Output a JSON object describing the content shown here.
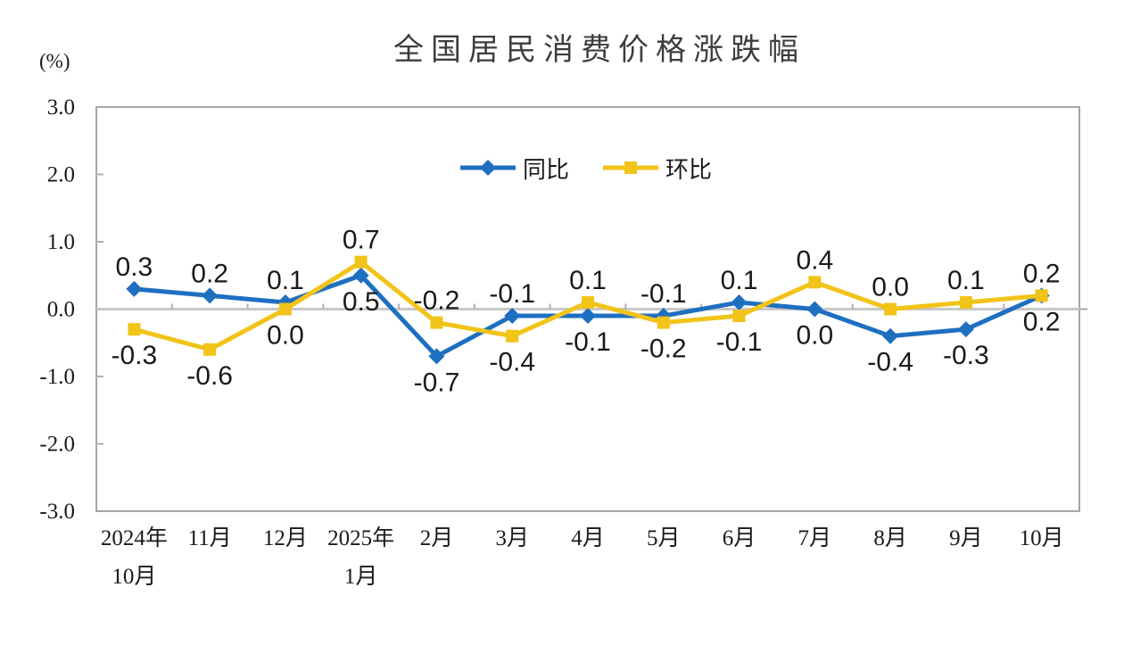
{
  "chart": {
    "title": "全国居民消费价格涨跌幅",
    "unit_label": "(%)"
  },
  "colors": {
    "tongbi_blue": "#1E6FC0",
    "huanbi_yellow": "#F2C318",
    "frame_gray": "#A6A6A6",
    "zero_line_gray": "#C8C8C8",
    "tick_gray": "#B0B0B0",
    "label_text": "#1A1A1A",
    "title_text": "#3D3D3D",
    "background": "#FFFFFF"
  },
  "chart_data": {
    "type": "line",
    "title": "全国居民消费价格涨跌幅",
    "ylabel": "(%)",
    "ylim": [
      -3.0,
      3.0
    ],
    "yticks": [
      3.0,
      2.0,
      1.0,
      0.0,
      -1.0,
      -2.0,
      -3.0
    ],
    "grid": false,
    "legend_position": "top-center-inside",
    "categories": [
      "2024年\n10月",
      "11月",
      "12月",
      "2025年\n1月",
      "2月",
      "3月",
      "4月",
      "5月",
      "6月",
      "7月",
      "8月",
      "9月",
      "10月"
    ],
    "series": [
      {
        "name": "同比",
        "marker": "diamond",
        "color": "#1E6FC0",
        "values": [
          0.3,
          0.2,
          0.1,
          0.5,
          -0.7,
          -0.1,
          -0.1,
          -0.1,
          0.1,
          0.0,
          -0.4,
          -0.3,
          0.2
        ]
      },
      {
        "name": "环比",
        "marker": "square",
        "color": "#F2C318",
        "values": [
          -0.3,
          -0.6,
          0.0,
          0.7,
          -0.2,
          -0.4,
          0.1,
          -0.2,
          -0.1,
          0.4,
          0.0,
          0.1,
          0.2
        ]
      }
    ]
  }
}
